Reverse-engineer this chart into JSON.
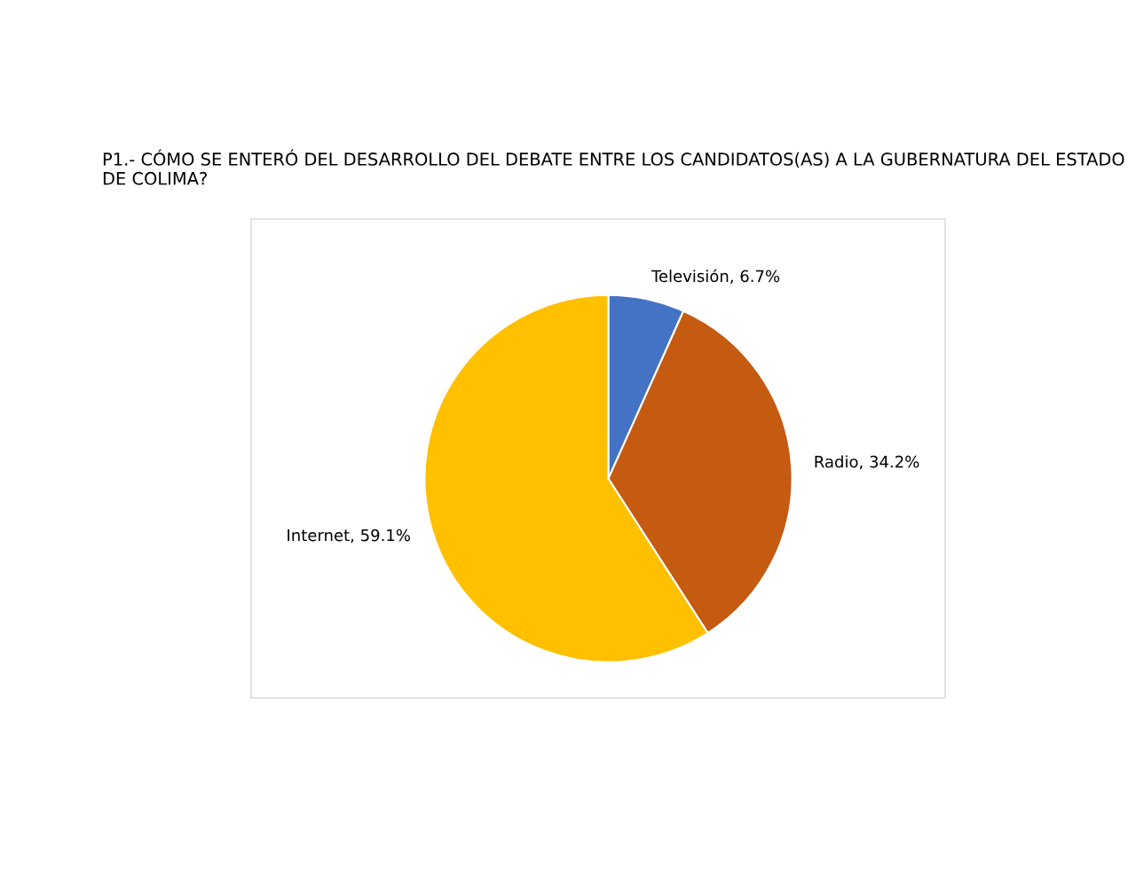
{
  "chart_data": {
    "type": "pie",
    "title": "P1.- CÓMO SE ENTERÓ DEL DESARROLLO DEL DEBATE ENTRE LOS CANDIDATOS(AS) A LA GUBERNATURA DEL ESTADO DE COLIMA?",
    "categories": [
      "Televisión",
      "Radio",
      "Internet"
    ],
    "values": [
      6.7,
      34.2,
      59.1
    ],
    "colors": [
      "#4472c4",
      "#c55a11",
      "#ffc000"
    ],
    "value_labels": [
      "6.7%",
      "34.2%",
      "59.1%"
    ],
    "legend": false
  }
}
